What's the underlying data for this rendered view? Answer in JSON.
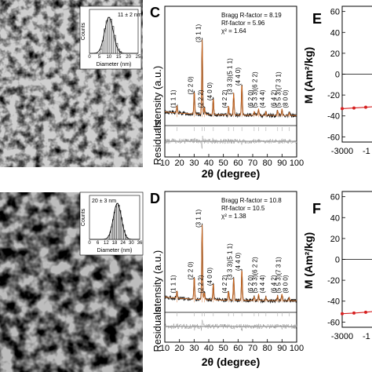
{
  "colors": {
    "observed": "#1a1a1a",
    "fit": "#d2691e",
    "bragg": "#b9b9b9",
    "residual": "#9a9a9a",
    "mh": "#d62020"
  },
  "tem": [
    {
      "scale_label": "11 ± 2 nm",
      "inset": {
        "xlabel": "Diameter (nm)",
        "ylabel": "Counts",
        "xticks": [
          "0",
          "5",
          "10",
          "15",
          "20",
          "25"
        ],
        "xlim": [
          0,
          25
        ],
        "bins": [
          6,
          7,
          8,
          9,
          10,
          11,
          12,
          13,
          14,
          15,
          16
        ],
        "counts": [
          0.12,
          0.35,
          0.68,
          0.9,
          1.0,
          0.95,
          0.75,
          0.5,
          0.28,
          0.12,
          0.05
        ]
      }
    },
    {
      "scale_label": "20 ± 3 nm",
      "inset": {
        "xlabel": "Diameter (nm)",
        "ylabel": "Counts",
        "xticks": [
          "0",
          "6",
          "12",
          "18",
          "24",
          "30",
          "36"
        ],
        "xlim": [
          0,
          36
        ],
        "bins": [
          14,
          15,
          16,
          17,
          18,
          19,
          20,
          21,
          22,
          23,
          24,
          25,
          26,
          27
        ],
        "counts": [
          0.1,
          0.2,
          0.35,
          0.55,
          0.75,
          0.9,
          1.0,
          0.95,
          0.8,
          0.6,
          0.4,
          0.25,
          0.12,
          0.05
        ]
      }
    }
  ],
  "chart_data": [
    {
      "type": "line",
      "panel": "C",
      "xlabel": "2θ (degree)",
      "ylabel": "Intensity (a.u.)",
      "residual_label": "Residuals",
      "xlim": [
        10,
        100
      ],
      "xticks": [
        "10",
        "20",
        "30",
        "40",
        "50",
        "60",
        "70",
        "80",
        "90",
        "100"
      ],
      "fit_info": [
        "Bragg R-factor = 8.19",
        "Rf-factor = 5.96",
        "χ² = 1.64"
      ],
      "peaks": [
        {
          "x": 18.3,
          "h": 0.1,
          "label": "(1 1 1)"
        },
        {
          "x": 30.1,
          "h": 0.3,
          "label": "(2 2 0)"
        },
        {
          "x": 35.5,
          "h": 1.0,
          "label": "(3 1 1)"
        },
        {
          "x": 37.1,
          "h": 0.09,
          "label": "(2 2 2)"
        },
        {
          "x": 43.1,
          "h": 0.22,
          "label": "(4 0 0)"
        },
        {
          "x": 53.5,
          "h": 0.12,
          "label": "(4 2 2)"
        },
        {
          "x": 57.0,
          "h": 0.3,
          "label": "(3 3 3)(5 1 1)"
        },
        {
          "x": 62.6,
          "h": 0.42,
          "label": "(4 4 0)"
        },
        {
          "x": 71.0,
          "h": 0.05,
          "label": "(6 2 0)"
        },
        {
          "x": 74.0,
          "h": 0.09,
          "label": "(5 3 3)(6 2 2)"
        },
        {
          "x": 79.0,
          "h": 0.05,
          "label": "(4 4 4)"
        },
        {
          "x": 87.0,
          "h": 0.07,
          "label": "(6 4 2)"
        },
        {
          "x": 90.0,
          "h": 0.09,
          "label": "(5 5 3)(7 3 1)"
        },
        {
          "x": 95.0,
          "h": 0.04,
          "label": "(8 0 0)"
        }
      ]
    },
    {
      "type": "line",
      "panel": "D",
      "xlabel": "2θ (degree)",
      "ylabel": "Intensity (a.u.)",
      "residual_label": "Residuals",
      "xlim": [
        10,
        100
      ],
      "xticks": [
        "10",
        "20",
        "30",
        "40",
        "50",
        "60",
        "70",
        "80",
        "90",
        "100"
      ],
      "fit_info": [
        "Bragg R-factor = 10.8",
        "Rf-factor = 10.5",
        "χ² = 1.38"
      ],
      "peaks": [
        {
          "x": 18.3,
          "h": 0.1,
          "label": "(1 1 1)"
        },
        {
          "x": 30.1,
          "h": 0.3,
          "label": "(2 2 0)"
        },
        {
          "x": 35.5,
          "h": 1.0,
          "label": "(3 1 1)"
        },
        {
          "x": 37.1,
          "h": 0.09,
          "label": "(2 2 2)"
        },
        {
          "x": 43.1,
          "h": 0.22,
          "label": "(4 0 0)"
        },
        {
          "x": 53.5,
          "h": 0.12,
          "label": "(4 2 2)"
        },
        {
          "x": 57.0,
          "h": 0.3,
          "label": "(3 3 3)(5 1 1)"
        },
        {
          "x": 62.6,
          "h": 0.42,
          "label": "(4 4 0)"
        },
        {
          "x": 71.0,
          "h": 0.05,
          "label": "(6 2 0)"
        },
        {
          "x": 74.0,
          "h": 0.09,
          "label": "(5 3 3)(6 2 2)"
        },
        {
          "x": 79.0,
          "h": 0.05,
          "label": "(4 4 4)"
        },
        {
          "x": 87.0,
          "h": 0.07,
          "label": "(6 4 2)"
        },
        {
          "x": 90.0,
          "h": 0.09,
          "label": "(5 5 3)(7 3 1)"
        },
        {
          "x": 95.0,
          "h": 0.04,
          "label": "(8 0 0)"
        }
      ]
    },
    {
      "type": "line",
      "panel": "E",
      "ylabel": "M (Am²/kg)",
      "xlim": [
        -3000,
        3000
      ],
      "ylim": [
        -65,
        65
      ],
      "yticks": [
        "60",
        "40",
        "20",
        "0",
        "-20",
        "-40",
        "-60"
      ],
      "xticks": [
        "-3000",
        "-1"
      ],
      "x": [
        -3000,
        -2500,
        -2000,
        -1500
      ],
      "y": [
        -33,
        -32.4,
        -31.7,
        -30.8
      ]
    },
    {
      "type": "line",
      "panel": "F",
      "ylabel": "M (Am²/kg)",
      "xlim": [
        -3000,
        3000
      ],
      "ylim": [
        -65,
        65
      ],
      "yticks": [
        "60",
        "40",
        "20",
        "0",
        "-20",
        "-40",
        "-60"
      ],
      "xticks": [
        "-3000",
        "-1"
      ],
      "x": [
        -3000,
        -2500,
        -2000,
        -1500
      ],
      "y": [
        -52,
        -51.4,
        -50.6,
        -49.6
      ]
    }
  ]
}
